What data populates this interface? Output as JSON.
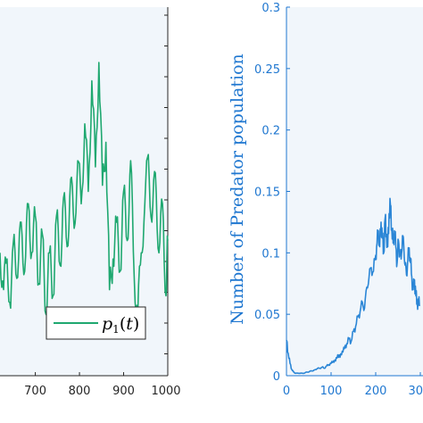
{
  "colors": {
    "background": "#f1f6fb",
    "left_series": "#1fa870",
    "right_series": "#2b86d6",
    "right_axis": "#1f77d0"
  },
  "chart_data": [
    {
      "type": "line",
      "title": "",
      "xlabel": "",
      "ylabel": "",
      "xlim": [
        620,
        1000
      ],
      "xticks": [
        "700",
        "800",
        "900",
        "1000"
      ],
      "grid": false,
      "legend": {
        "placement": "bottom-right",
        "entries": [
          "p_1(t)"
        ]
      },
      "series": [
        {
          "name": "p_1(t)",
          "x": [
            620,
            628,
            636,
            644,
            652,
            660,
            668,
            676,
            684,
            692,
            700,
            708,
            716,
            724,
            732,
            740,
            748,
            756,
            764,
            772,
            780,
            788,
            796,
            804,
            812,
            820,
            828,
            836,
            844,
            852,
            860,
            868,
            876,
            884,
            892,
            900,
            908,
            916,
            924,
            932,
            940,
            948,
            956,
            964,
            972,
            980,
            988,
            996,
            1000
          ],
          "y": [
            0.3,
            0.18,
            0.28,
            0.12,
            0.36,
            0.22,
            0.4,
            0.24,
            0.46,
            0.3,
            0.42,
            0.2,
            0.36,
            0.1,
            0.3,
            0.16,
            0.42,
            0.26,
            0.48,
            0.32,
            0.54,
            0.38,
            0.6,
            0.46,
            0.72,
            0.5,
            0.86,
            0.58,
            0.92,
            0.52,
            0.66,
            0.18,
            0.28,
            0.4,
            0.24,
            0.5,
            0.34,
            0.6,
            0.22,
            0.1,
            0.3,
            0.46,
            0.62,
            0.4,
            0.56,
            0.3,
            0.46,
            0.16,
            0.34
          ]
        }
      ]
    },
    {
      "type": "line",
      "title": "",
      "xlabel": "",
      "ylabel": "Number of Predator population",
      "xlim": [
        0,
        300
      ],
      "ylim": [
        0,
        0.3
      ],
      "xticks": [
        "0",
        "100",
        "200",
        "30"
      ],
      "yticks": [
        "0",
        "0.05",
        "0.1",
        "0.15",
        "0.2",
        "0.25",
        "0.3"
      ],
      "grid": false,
      "series": [
        {
          "x": [
            0,
            4,
            8,
            12,
            16,
            20,
            25,
            30,
            35,
            40,
            45,
            50,
            55,
            60,
            65,
            70,
            75,
            80,
            85,
            90,
            95,
            100,
            105,
            110,
            115,
            120,
            125,
            130,
            135,
            140,
            145,
            150,
            155,
            160,
            165,
            170,
            175,
            180,
            185,
            190,
            195,
            200,
            203,
            206,
            209,
            212,
            215,
            218,
            221,
            224,
            227,
            230,
            233,
            236,
            239,
            242,
            245,
            248,
            251,
            254,
            257,
            260,
            263,
            266,
            269,
            272,
            275,
            278,
            281,
            284,
            287,
            290,
            293,
            296,
            299
          ],
          "y": [
            0.029,
            0.018,
            0.01,
            0.005,
            0.003,
            0.002,
            0.002,
            0.002,
            0.002,
            0.002,
            0.003,
            0.003,
            0.004,
            0.004,
            0.005,
            0.006,
            0.006,
            0.007,
            0.006,
            0.008,
            0.009,
            0.01,
            0.012,
            0.012,
            0.017,
            0.015,
            0.02,
            0.022,
            0.026,
            0.03,
            0.028,
            0.036,
            0.04,
            0.048,
            0.052,
            0.06,
            0.055,
            0.072,
            0.08,
            0.088,
            0.085,
            0.098,
            0.108,
            0.118,
            0.105,
            0.125,
            0.112,
            0.1,
            0.128,
            0.115,
            0.105,
            0.132,
            0.139,
            0.12,
            0.108,
            0.118,
            0.105,
            0.092,
            0.11,
            0.1,
            0.095,
            0.114,
            0.105,
            0.09,
            0.082,
            0.095,
            0.104,
            0.092,
            0.08,
            0.07,
            0.078,
            0.065,
            0.06,
            0.058,
            0.062
          ]
        }
      ]
    }
  ]
}
